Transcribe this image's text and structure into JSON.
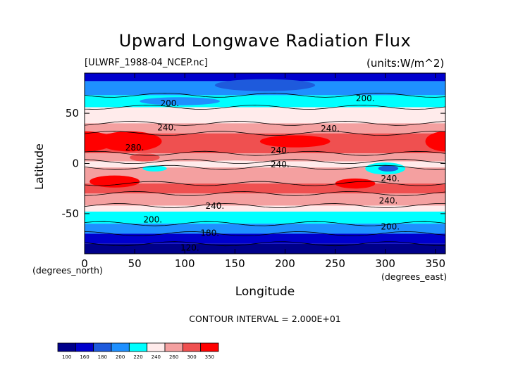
{
  "chart_data": {
    "type": "heatmap",
    "title": "Upward Longwave Radiation Flux",
    "file_label": "[ULWRF_1988-04_NCEP.nc]",
    "units_label": "(units:W/m^2)",
    "xlabel": "Longitude",
    "ylabel": "Latitude",
    "x_unit": "(degrees_east)",
    "y_unit": "(degrees_north)",
    "xlim": [
      0,
      360
    ],
    "ylim": [
      -90,
      90
    ],
    "x_ticks": [
      0,
      50,
      100,
      150,
      200,
      250,
      300,
      350
    ],
    "y_ticks": [
      -50,
      0,
      50
    ],
    "contour_interval": "CONTOUR INTERVAL = 2.000E+01",
    "colorbar": {
      "levels": [
        "100",
        "160",
        "180",
        "200",
        "220",
        "240",
        "260",
        "300",
        "350"
      ],
      "colors": [
        "#00008b",
        "#0000cd",
        "#1e5adc",
        "#1e90ff",
        "#00ffff",
        "#ffebeb",
        "#f4a0a0",
        "#ef5050",
        "#ff0000"
      ]
    },
    "contour_labels": [
      {
        "text": "200.",
        "lon": 85,
        "lat": 57
      },
      {
        "text": "240.",
        "lon": 82,
        "lat": 33
      },
      {
        "text": "280.",
        "lon": 50,
        "lat": 13
      },
      {
        "text": "240.",
        "lon": 195,
        "lat": 10
      },
      {
        "text": "240.",
        "lon": 195,
        "lat": -4
      },
      {
        "text": "240.",
        "lon": 245,
        "lat": 32
      },
      {
        "text": "200.",
        "lon": 280,
        "lat": 62
      },
      {
        "text": "240.",
        "lon": 305,
        "lat": -18
      },
      {
        "text": "240.",
        "lon": 130,
        "lat": -45
      },
      {
        "text": "240.",
        "lon": 303,
        "lat": -40
      },
      {
        "text": "200.",
        "lon": 68,
        "lat": -59
      },
      {
        "text": "200.",
        "lon": 305,
        "lat": -66
      },
      {
        "text": "180.",
        "lon": 125,
        "lat": -72
      },
      {
        "text": "120.",
        "lon": 105,
        "lat": -87
      }
    ]
  }
}
